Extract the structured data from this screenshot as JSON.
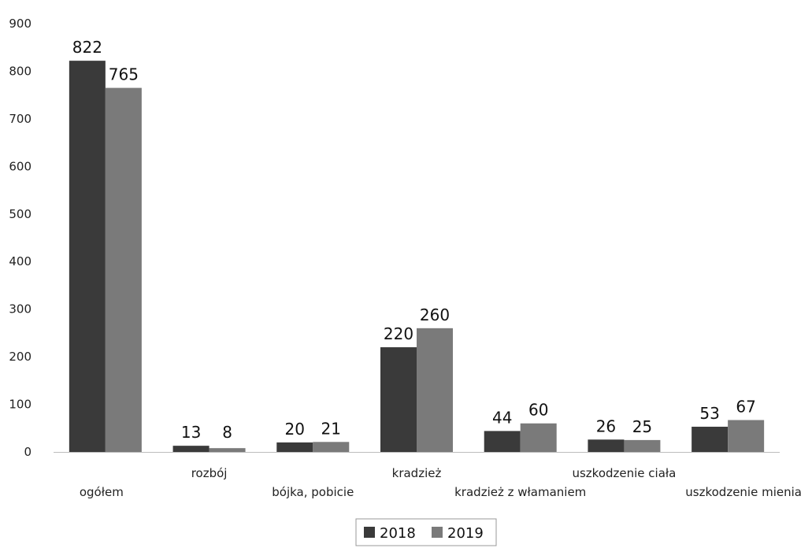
{
  "chart_data": {
    "type": "bar",
    "title": "",
    "xlabel": "",
    "ylabel": "",
    "ylim": [
      0,
      900
    ],
    "yticks": [
      0,
      100,
      200,
      300,
      400,
      500,
      600,
      700,
      800,
      900
    ],
    "grid": false,
    "legend_position": "bottom-center",
    "categories": [
      "ogółem",
      "rozbój",
      "bójka, pobicie",
      "kradzież",
      "kradzież z włamaniem",
      "uszkodzenie ciała",
      "uszkodzenie mienia"
    ],
    "series": [
      {
        "name": "2018",
        "color": "#3a3a3a",
        "values": [
          822,
          13,
          20,
          220,
          44,
          26,
          53
        ]
      },
      {
        "name": "2019",
        "color": "#7a7a7a",
        "values": [
          765,
          8,
          21,
          260,
          60,
          25,
          67
        ]
      }
    ]
  }
}
